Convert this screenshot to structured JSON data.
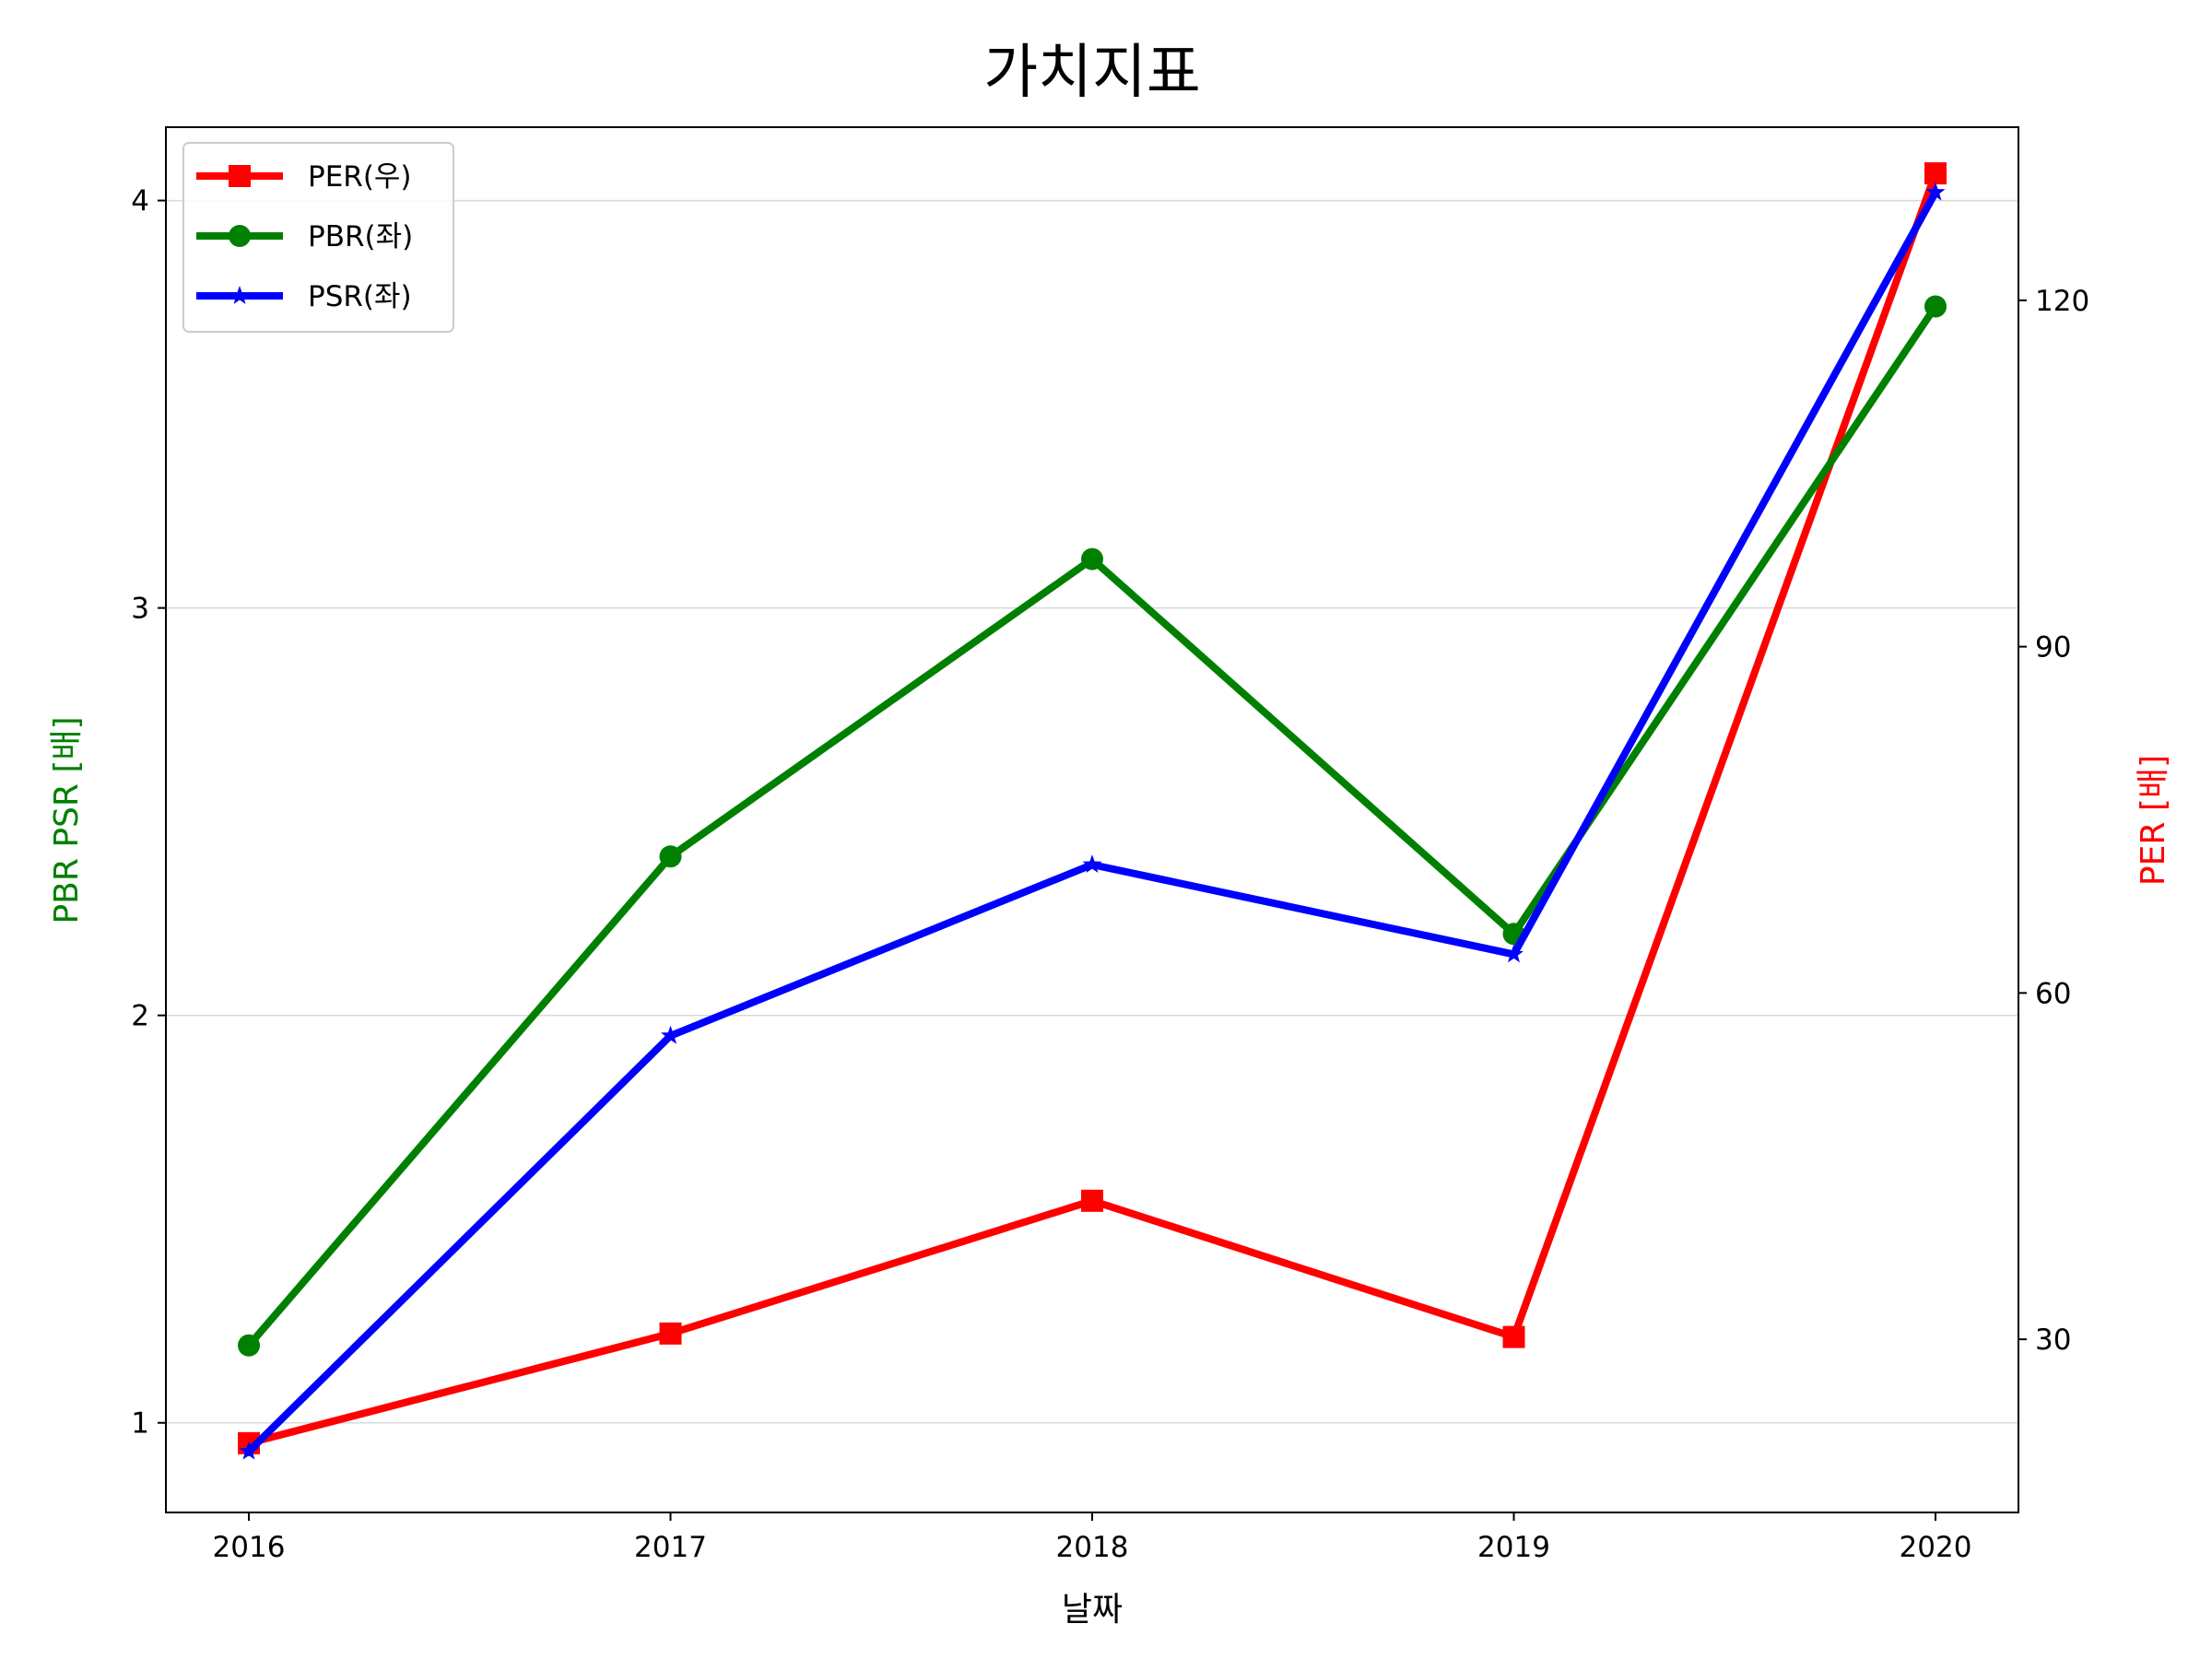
{
  "chart_data": {
    "type": "line",
    "title": "가치지표",
    "xlabel": "날짜",
    "ylabel_left": "PBR PSR [배]",
    "ylabel_right": "PER [배]",
    "categories": [
      "2016",
      "2017",
      "2018",
      "2019",
      "2020"
    ],
    "ylim_left": [
      0.78,
      4.18
    ],
    "ylim_right": [
      15,
      135
    ],
    "yticks_left": [
      1,
      2,
      3,
      4
    ],
    "yticks_right": [
      30,
      60,
      90,
      120
    ],
    "grid": "horizontal, left axis",
    "legend_position": "top-left",
    "series": [
      {
        "name": "PER(우)",
        "axis": "right",
        "color": "#ff0000",
        "marker": "square",
        "values": [
          21,
          30.5,
          42,
          30.2,
          131
        ]
      },
      {
        "name": "PBR(좌)",
        "axis": "left",
        "color": "#008000",
        "marker": "circle",
        "values": [
          1.19,
          2.39,
          3.12,
          2.2,
          3.74
        ]
      },
      {
        "name": "PSR(좌)",
        "axis": "left",
        "color": "#0000ff",
        "marker": "star",
        "values": [
          0.93,
          1.95,
          2.37,
          2.15,
          4.02
        ]
      }
    ],
    "colors": {
      "ylabel_left": "#008000",
      "ylabel_right": "#ff0000",
      "grid": "#d9d9d9"
    }
  }
}
